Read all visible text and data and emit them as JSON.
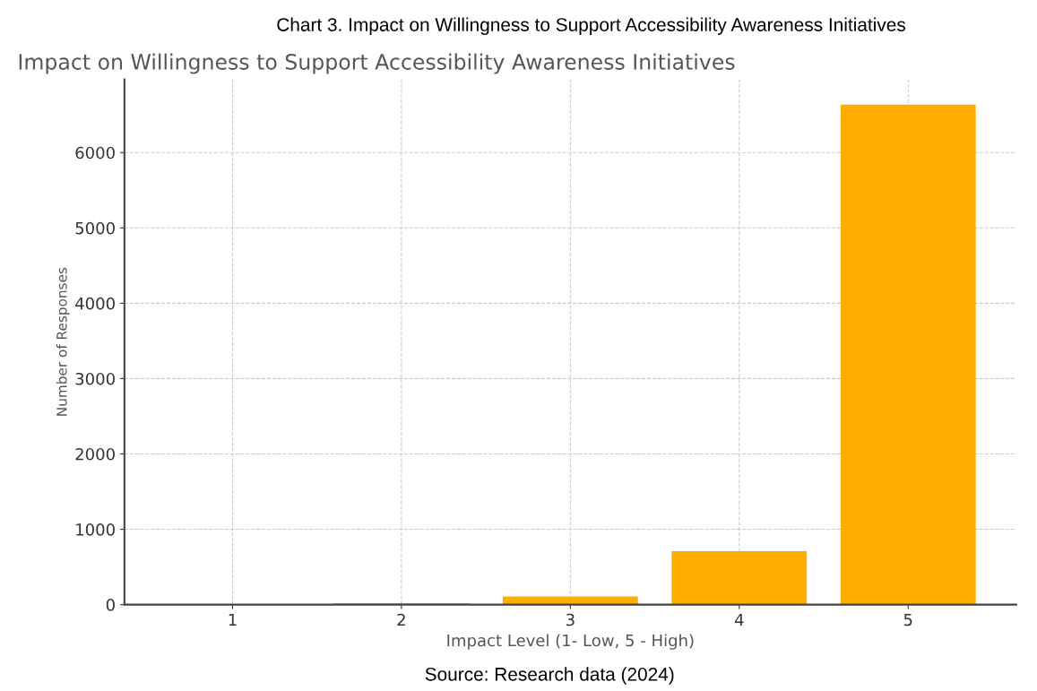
{
  "chart_data": {
    "type": "bar",
    "title": "Chart 3. Impact on Willingness to Support Accessibility Awareness Initiatives",
    "subtitle": "Impact on Willingness to Support Accessibility Awareness Initiatives",
    "xlabel": "Impact Level (1- Low, 5 - High)",
    "ylabel": "Number of Responses",
    "categories": [
      "1",
      "2",
      "3",
      "4",
      "5"
    ],
    "values": [
      0,
      20,
      110,
      710,
      6635
    ],
    "color": "#ffad00",
    "ylim": [
      0,
      6970
    ],
    "yticks": [
      0,
      1000,
      2000,
      3000,
      4000,
      5000,
      6000
    ],
    "grid": true,
    "annotations": [
      "Source: Research data (2024)"
    ]
  }
}
